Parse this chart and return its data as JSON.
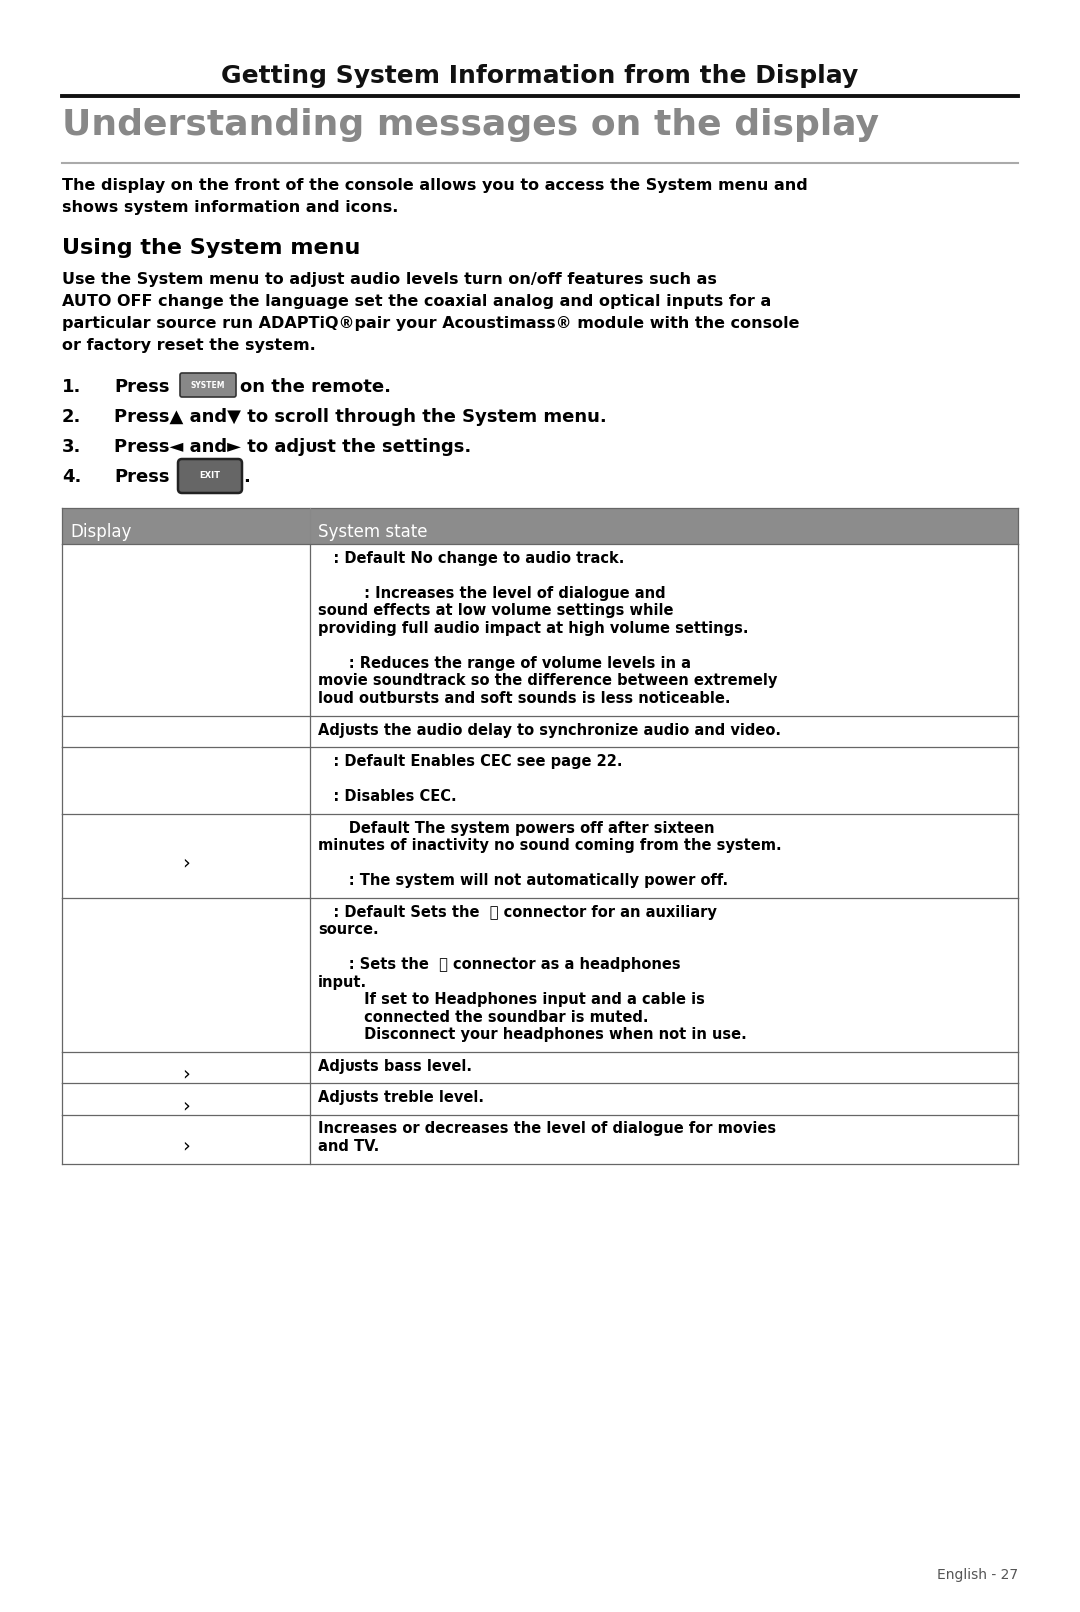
{
  "page_title": "Getting System Information from the Display",
  "section_title": "Understanding messages on the display",
  "intro_line1": "The display on the front of the console allows you to access the System menu and",
  "intro_line2": "shows system information and icons.",
  "subsection_title": "Using the System menu",
  "body_lines": [
    "Use the System menu to adjᴜst audio levels turn on/off features such as",
    "AUTO OFF change the language set the coaxial analog and optical inputs for a",
    "particular source run ADAPTiQ®pair your Acoustimass® module with the console",
    "or factory reset the system."
  ],
  "step2": "Press▲ and▼ to scroll through the System menu.",
  "step3": "Press◄ and► to adjᴜst the settings.",
  "table_col1_header": "Display",
  "table_col2_header": "System state",
  "table_header_bg": "#8c8c8c",
  "table_header_text": "#ffffff",
  "table_border": "#666666",
  "table_rows": [
    {
      "col1": "",
      "col2_lines": [
        "   : Default No change to audio track.",
        "",
        "         : Increases the level of dialogue and",
        "sound effects at low volume settings while",
        "providing full audio impact at high volume settings.",
        "",
        "      : Reduces the range of volume levels in a",
        "movie soundtrack so the difference between extremely",
        "loud outbursts and soft sounds is less noticeable."
      ]
    },
    {
      "col1": "",
      "col2_lines": [
        "Adjᴜsts the audio delay to synchronize audio and video."
      ]
    },
    {
      "col1": "",
      "col2_lines": [
        "   : Default Enables CEC see page 22.",
        "",
        "   : Disables CEC."
      ]
    },
    {
      "col1": "›",
      "col2_lines": [
        "      Default The system powers off after sixteen",
        "minutes of inactivity no sound coming from the system.",
        "",
        "      : The system will not automatically power off."
      ]
    },
    {
      "col1": "",
      "col2_lines": [
        "   : Default Sets the  ⺫ connector for an auxiliary",
        "source.",
        "",
        "      : Sets the  ⺫ connector as a headphones",
        "input.",
        "         If set to Headphones input and a cable is",
        "         connected the soundbar is muted.",
        "         Disconnect your headphones when not in use."
      ]
    },
    {
      "col1": "›",
      "col2_lines": [
        "Adjᴜsts bass level."
      ]
    },
    {
      "col1": "›",
      "col2_lines": [
        "Adjᴜsts treble level."
      ]
    },
    {
      "col1": "›",
      "col2_lines": [
        "Increases or decreases the level of dialogue for movies",
        "and TV."
      ]
    }
  ],
  "footer": "English - 27",
  "bg_color": "#ffffff",
  "text_color": "#000000"
}
